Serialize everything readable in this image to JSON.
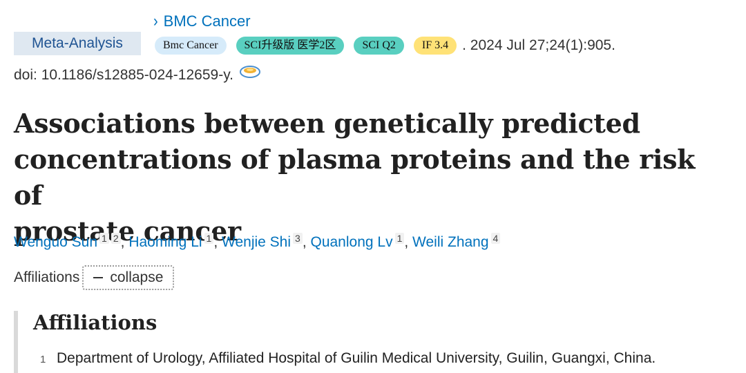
{
  "journal": {
    "chevron": "›",
    "name": "BMC Cancer"
  },
  "article_type": "Meta-Analysis",
  "badges": [
    {
      "label": "Bmc Cancer",
      "color": "#d6ebfa"
    },
    {
      "label": "SCI升级版 医学2区",
      "color": "#59cfc0"
    },
    {
      "label": "SCI Q2",
      "color": "#59cfc0"
    },
    {
      "label": "IF 3.4",
      "color": "#ffe277"
    }
  ],
  "citation": ". 2024 Jul 27;24(1):905.",
  "doi": "doi: 10.1186/s12885-024-12659-y.",
  "doi_icon": "citation-tool-icon",
  "title_lines": [
    "Associations between genetically predicted",
    "concentrations of plasma proteins and the risk of",
    "prostate cancer"
  ],
  "authors": [
    {
      "name": "Wenguo Sun",
      "affs": [
        "1",
        "2"
      ],
      "sep": ", "
    },
    {
      "name": "Haoming Li",
      "affs": [
        "1"
      ],
      "sep": ", "
    },
    {
      "name": "Wenjie Shi",
      "affs": [
        "3"
      ],
      "sep": ", "
    },
    {
      "name": "Quanlong Lv",
      "affs": [
        "1"
      ],
      "sep": ", "
    },
    {
      "name": "Weili Zhang",
      "affs": [
        "4"
      ],
      "sep": ""
    }
  ],
  "affiliations_label": "Affiliations",
  "collapse_label": "collapse",
  "affiliations_heading": "Affiliations",
  "affiliations": [
    {
      "num": "1",
      "text": "Department of Urology, Affiliated Hospital of Guilin Medical University, Guilin, Guangxi, China."
    }
  ]
}
